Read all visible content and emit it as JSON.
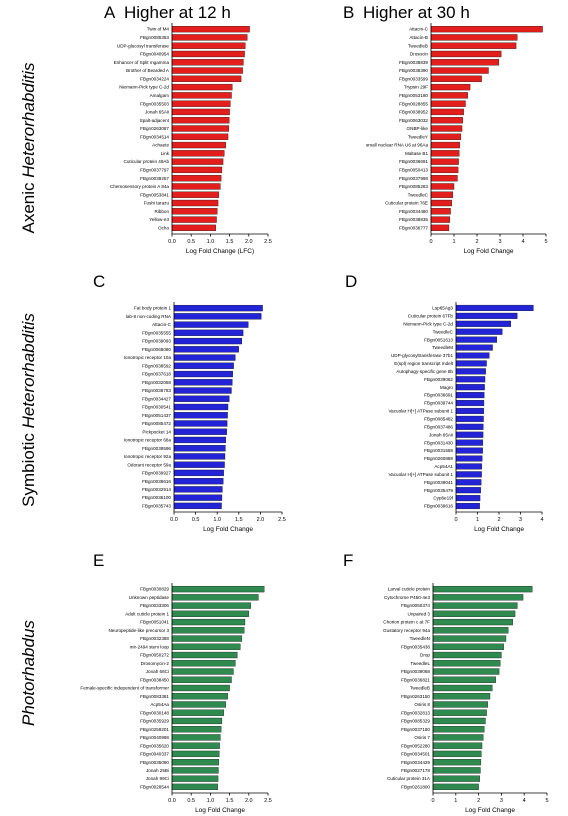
{
  "column_titles": [
    {
      "letter": "A",
      "text": "Higher at 12 h"
    },
    {
      "letter": "B",
      "text": "Higher at 30  h"
    }
  ],
  "row_labels": [
    {
      "plain": "Axenic ",
      "italic": "Heterorhabditis"
    },
    {
      "plain": "Symbiotic ",
      "italic": "Heterorhabditis"
    },
    {
      "plain": "",
      "italic": "Photorhabdus"
    }
  ],
  "colors": {
    "red": "#e41d1d",
    "blue": "#2323d8",
    "green": "#2f8a4f",
    "axis": "#000000"
  },
  "chart_data": [
    {
      "panel": "A",
      "type": "bar",
      "orientation": "horizontal",
      "color": "red",
      "xlabel": "Log Fold Change (LFC)",
      "xlim": [
        0,
        2.5
      ],
      "ticks": [
        "0.0",
        "0.5",
        "1.0",
        "1.5",
        "2.0",
        "2.5"
      ],
      "tick_values": [
        0,
        0.5,
        1,
        1.5,
        2,
        2.5
      ],
      "categories": [
        "Twin of M4",
        "FBgn0085353",
        "UDP-glucosyl transferase",
        "FBgn0040954",
        "Enhancer of Split mgamma",
        "Brother of Bearded A",
        "FBgn0034224",
        "Niemann-Pick type C-2d",
        "Amalgam",
        "FBgn0035503",
        "Jonah 65Aii",
        "Spalt-adjacent",
        "FBgn0263087",
        "FBgn0034514",
        "Achaete",
        "Link",
        "Cuticular protein 49Ab",
        "FBgn0037797",
        "FBgn0039257",
        "Chemosensory protein A 84a",
        "FBgn0053841",
        "Fushi tarazu",
        "Ribbon",
        "Yellow-e3",
        "Ocho"
      ],
      "values": [
        2.02,
        1.96,
        1.91,
        1.89,
        1.86,
        1.84,
        1.8,
        1.57,
        1.55,
        1.52,
        1.5,
        1.49,
        1.48,
        1.46,
        1.4,
        1.36,
        1.33,
        1.3,
        1.28,
        1.26,
        1.22,
        1.2,
        1.18,
        1.16,
        1.14
      ]
    },
    {
      "panel": "B",
      "type": "bar",
      "orientation": "horizontal",
      "color": "red",
      "xlabel": "Log Fold Change",
      "xlim": [
        0,
        5
      ],
      "ticks": [
        "0",
        "1",
        "2",
        "3",
        "4",
        "5"
      ],
      "tick_values": [
        0,
        1,
        2,
        3,
        4,
        5
      ],
      "categories": [
        "Attacin-C",
        "Attacin-B",
        "TweedleB",
        "Drosocin",
        "FBgn0038839",
        "FBgn0038390",
        "FBgn0033599",
        "Trypsin 29F",
        "FBgn0053180",
        "FBgn0028855",
        "FBgn0038952",
        "FBgn0063032",
        "GNBP-like",
        "TweedleY",
        "small nuclear RNA U6 at 96Aa",
        "Maltase B1",
        "FBgn0036691",
        "FBgn0050413",
        "FBgn0037998",
        "FBgn0085283",
        "TweedleC",
        "Cuticular protein 76E",
        "FBgn0034480",
        "FBgn0038835",
        "FBgn0036777"
      ],
      "values": [
        4.85,
        3.75,
        3.7,
        3.05,
        2.95,
        2.5,
        2.2,
        1.7,
        1.6,
        1.5,
        1.42,
        1.38,
        1.35,
        1.3,
        1.25,
        1.23,
        1.2,
        1.18,
        1.15,
        1.0,
        0.95,
        0.9,
        0.85,
        0.82,
        0.78
      ]
    },
    {
      "panel": "C",
      "type": "bar",
      "orientation": "horizontal",
      "color": "blue",
      "xlabel": "Log Fold Change",
      "xlim": [
        0,
        2.5
      ],
      "ticks": [
        "0.0",
        "0.5",
        "1.0",
        "1.5",
        "2.0",
        "2.5"
      ],
      "tick_values": [
        0,
        0.5,
        1,
        1.5,
        2,
        2.5
      ],
      "categories": [
        "Fat body protein 1",
        "lab-8 non-coding RNA",
        "Attacin-C",
        "FBgn0035555",
        "FBgn0039093",
        "FBgn0065080",
        "Ionotropic receptor 10a",
        "FBgn0038592",
        "FBgn0037618",
        "FBgn0032058",
        "FBgn0036783",
        "FBgn0034427",
        "FBgn0030541",
        "FBgn0051437",
        "FBgn0085472",
        "Pickpocket 14",
        "Ionotropic receptor 68a",
        "FBgn0039596",
        "Ionotropic receptor 92a",
        "Odorant receptor 59a",
        "FBgn0039927",
        "FBgn0038616",
        "FBgn0032914",
        "FBgn0036100",
        "FBgn0035743"
      ],
      "values": [
        2.05,
        2.02,
        1.72,
        1.6,
        1.57,
        1.5,
        1.42,
        1.38,
        1.36,
        1.35,
        1.33,
        1.28,
        1.25,
        1.24,
        1.23,
        1.22,
        1.2,
        1.19,
        1.18,
        1.17,
        1.15,
        1.14,
        1.12,
        1.11,
        1.1
      ]
    },
    {
      "panel": "D",
      "type": "bar",
      "orientation": "horizontal",
      "color": "blue",
      "xlabel": "Log Fold Change",
      "xlim": [
        0,
        4
      ],
      "ticks": [
        "0",
        "1",
        "2",
        "3",
        "4"
      ],
      "tick_values": [
        0,
        1,
        2,
        3,
        4
      ],
      "categories": [
        "Lsp65Ag3",
        "Cuticular protein 67Fb",
        "Niemann-Pick type C-2d",
        "TweedleC",
        "FBgn0051613",
        "TweedleM",
        "UDP-glycosyltransferase 37b1",
        "E(spl) region transcript mdelt",
        "Autophagy-specific gene 8b",
        "FBgn0039062",
        "Magro",
        "FBgn0036691",
        "FBgn0039744",
        "Vacuolar H[+] ATPase subunit 1",
        "FBgn0085482",
        "FBgn0037486",
        "Jonah 65Aii",
        "FBgn0031430",
        "FBgn0031558",
        "FBgn0260888",
        "Acp54A1",
        "Vacuolar H[+] ATPase subunit 1",
        "FBgn0039041",
        "FBgn0035479",
        "Cyp6e19f",
        "FBgn0039616"
      ],
      "values": [
        3.6,
        2.85,
        2.55,
        2.15,
        1.9,
        1.7,
        1.55,
        1.42,
        1.38,
        1.35,
        1.33,
        1.31,
        1.3,
        1.29,
        1.28,
        1.27,
        1.26,
        1.25,
        1.24,
        1.22,
        1.2,
        1.19,
        1.17,
        1.15,
        1.12,
        1.1
      ]
    },
    {
      "panel": "E",
      "type": "bar",
      "orientation": "horizontal",
      "color": "green",
      "xlabel": "Log Fold Change",
      "xlim": [
        0,
        2.5
      ],
      "ticks": [
        "0.0",
        "0.5",
        "1.0",
        "1.5",
        "2.0",
        "2.5"
      ],
      "tick_values": [
        0,
        0.5,
        1,
        1.5,
        2,
        2.5
      ],
      "categories": [
        "FBgn0030829",
        "Unknown peptidase",
        "FBgn0033306",
        "Adult cuticle protein 1",
        "FBgn0051041",
        "Neuropeptide-like precursor 3",
        "FBgn0032388",
        "mir-2494 stem loop",
        "FBgn0050272",
        "Drosomycin-2",
        "Jonah 66Ci",
        "FBgn0038450",
        "Female-specific independent of transformer",
        "FBgn0083381",
        "Acp54Aa",
        "FBgn0030148",
        "FBgn0035929",
        "FBgn0259201",
        "FBgn0040998",
        "FBgn0035620",
        "FBgn0040337",
        "FBgn0035090",
        "Jonah 25Bi",
        "Jonah 99Ci",
        "FBgn0028544"
      ],
      "values": [
        2.4,
        2.25,
        2.05,
        2.0,
        1.9,
        1.88,
        1.82,
        1.78,
        1.7,
        1.65,
        1.6,
        1.55,
        1.5,
        1.45,
        1.4,
        1.35,
        1.3,
        1.28,
        1.26,
        1.24,
        1.23,
        1.22,
        1.21,
        1.2,
        1.19
      ]
    },
    {
      "panel": "F",
      "type": "bar",
      "orientation": "horizontal",
      "color": "green",
      "xlabel": "Log Fold Change",
      "xlim": [
        0,
        5
      ],
      "ticks": [
        "0",
        "1",
        "2",
        "3",
        "4",
        "5"
      ],
      "tick_values": [
        0,
        1,
        2,
        3,
        4,
        5
      ],
      "categories": [
        "Larval cuticle protein",
        "Cytochrome P450-4e3",
        "FBgn0050374",
        "Unpaired 3",
        "Chorion protein c at 7F",
        "Gustatory receptor 94a",
        "TweedleN",
        "FBgn0035438",
        "Drop",
        "TweedleL",
        "FBgn0039068",
        "FBgn0036821",
        "TweedleB",
        "FBgn0263150",
        "Osiris 8",
        "FBgn0032813",
        "FBgn0085329",
        "FBgn0037180",
        "Osiris 7",
        "FBgn0052280",
        "FBgn0034501",
        "FBgn0034429",
        "FBgn0027178",
        "Cuticular protein 31A",
        "FBgn0261800"
      ],
      "values": [
        4.35,
        3.95,
        3.7,
        3.6,
        3.5,
        3.3,
        3.2,
        3.1,
        3.0,
        2.95,
        2.9,
        2.75,
        2.6,
        2.5,
        2.4,
        2.35,
        2.3,
        2.25,
        2.2,
        2.15,
        2.12,
        2.1,
        2.08,
        2.05,
        2.0
      ]
    }
  ]
}
